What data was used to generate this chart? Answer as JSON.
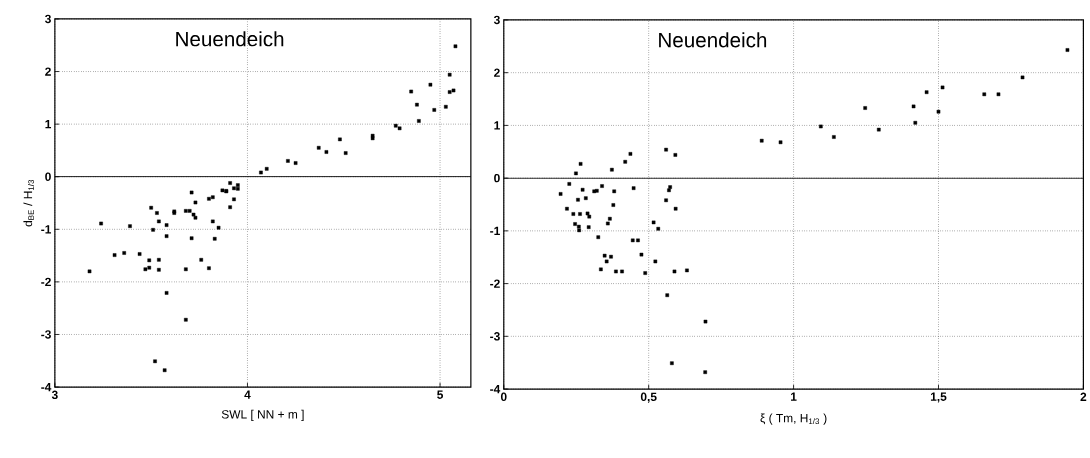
{
  "chart_data": [
    {
      "type": "scatter",
      "title": "Neuendeich",
      "xlabel": "SWL [ NN + m ]",
      "ylabel": "d$_{BE}$ / H$_{1/3}$",
      "x": [
        3.18,
        3.24,
        3.31,
        3.36,
        3.39,
        3.44,
        3.47,
        3.49,
        3.49,
        3.5,
        3.51,
        3.52,
        3.53,
        3.54,
        3.54,
        3.54,
        3.57,
        3.58,
        3.58,
        3.58,
        3.62,
        3.62,
        3.68,
        3.68,
        3.68,
        3.7,
        3.71,
        3.71,
        3.72,
        3.73,
        3.73,
        3.76,
        3.8,
        3.8,
        3.82,
        3.82,
        3.83,
        3.85,
        3.87,
        3.89,
        3.89,
        3.91,
        3.91,
        3.93,
        3.93,
        3.95,
        3.95,
        4.07,
        4.1,
        4.21,
        4.25,
        4.37,
        4.41,
        4.48,
        4.51,
        4.65,
        4.65,
        4.77,
        4.79,
        4.85,
        4.88,
        4.89,
        4.95,
        4.97,
        5.03,
        5.05,
        5.05,
        5.07,
        5.08
      ],
      "values": [
        -1.8,
        -0.89,
        -1.49,
        -1.45,
        -0.94,
        -1.47,
        -1.76,
        -1.73,
        -1.59,
        -0.59,
        -1.01,
        -3.51,
        -0.69,
        -1.58,
        -0.85,
        -1.77,
        -3.68,
        -2.21,
        -0.92,
        -1.13,
        -0.66,
        -0.69,
        -1.76,
        -0.65,
        -2.72,
        -0.65,
        -0.3,
        -1.17,
        -0.72,
        -0.78,
        -0.49,
        -1.58,
        -1.74,
        -0.42,
        -0.39,
        -0.85,
        -1.18,
        -0.97,
        -0.26,
        -0.27,
        -0.28,
        -0.12,
        -0.58,
        -0.43,
        -0.22,
        -0.16,
        -0.23,
        0.08,
        0.15,
        0.3,
        0.26,
        0.55,
        0.47,
        0.71,
        0.45,
        0.78,
        0.73,
        0.97,
        0.92,
        1.62,
        1.37,
        1.06,
        1.75,
        1.27,
        1.33,
        1.94,
        1.61,
        1.64,
        2.48
      ],
      "color": "#000000",
      "marker": "square",
      "grid": true,
      "ref_lines": [
        {
          "axis": "y",
          "value": 0
        }
      ],
      "xlim": [
        3,
        5.16
      ],
      "ylim": [
        -4,
        3
      ],
      "xticks": [
        3,
        4,
        5
      ],
      "yticks": [
        -4,
        -3,
        -2,
        -1,
        0,
        1,
        2,
        3
      ]
    },
    {
      "type": "scatter",
      "title": "Neuendeich",
      "xlabel": "ξ ( Tm, H$_{1/3}$ )",
      "x": [
        0.196,
        0.226,
        0.249,
        0.265,
        0.218,
        0.24,
        0.246,
        0.256,
        0.259,
        0.26,
        0.263,
        0.272,
        0.283,
        0.289,
        0.293,
        0.295,
        0.312,
        0.321,
        0.326,
        0.335,
        0.339,
        0.348,
        0.355,
        0.359,
        0.366,
        0.37,
        0.373,
        0.378,
        0.381,
        0.387,
        0.408,
        0.419,
        0.437,
        0.445,
        0.448,
        0.463,
        0.475,
        0.488,
        0.517,
        0.523,
        0.533,
        0.56,
        0.56,
        0.564,
        0.57,
        0.574,
        0.58,
        0.592,
        0.593,
        0.589,
        0.632,
        0.696,
        0.695,
        0.89,
        0.955,
        1.094,
        1.139,
        1.247,
        1.294,
        1.414,
        1.42,
        1.459,
        1.5,
        1.514,
        1.658,
        1.707,
        1.79,
        1.945
      ],
      "values": [
        -0.3,
        -0.11,
        0.09,
        0.27,
        -0.58,
        -0.68,
        -0.87,
        -0.41,
        -0.92,
        -0.99,
        -0.68,
        -0.22,
        -0.38,
        -0.67,
        -0.93,
        -0.73,
        -0.25,
        -0.24,
        -1.12,
        -1.73,
        -0.15,
        -1.47,
        -1.58,
        -0.86,
        -0.77,
        -1.49,
        0.16,
        -0.51,
        -0.25,
        -1.77,
        -1.77,
        0.31,
        0.46,
        -1.18,
        -0.19,
        -1.18,
        -1.45,
        -1.8,
        -0.84,
        -1.58,
        -0.96,
        0.54,
        -0.42,
        -2.22,
        -0.23,
        -0.17,
        -3.51,
        0.44,
        -0.58,
        -1.77,
        -1.75,
        -2.72,
        -3.68,
        0.71,
        0.68,
        0.98,
        0.78,
        1.33,
        0.92,
        1.36,
        1.05,
        1.63,
        1.26,
        1.72,
        1.59,
        1.59,
        1.91,
        2.43
      ],
      "color": "#000000",
      "marker": "square",
      "grid": true,
      "ref_lines": [
        {
          "axis": "y",
          "value": 0
        }
      ],
      "xlim": [
        0,
        2
      ],
      "ylim": [
        -4,
        3
      ],
      "xticks": [
        0,
        {
          "value": 0.5,
          "label": "0,5"
        },
        1,
        {
          "value": 1.5,
          "label": "1,5"
        },
        2
      ],
      "yticks": [
        -4,
        -3,
        -2,
        -1,
        0,
        1,
        2,
        3
      ]
    }
  ]
}
